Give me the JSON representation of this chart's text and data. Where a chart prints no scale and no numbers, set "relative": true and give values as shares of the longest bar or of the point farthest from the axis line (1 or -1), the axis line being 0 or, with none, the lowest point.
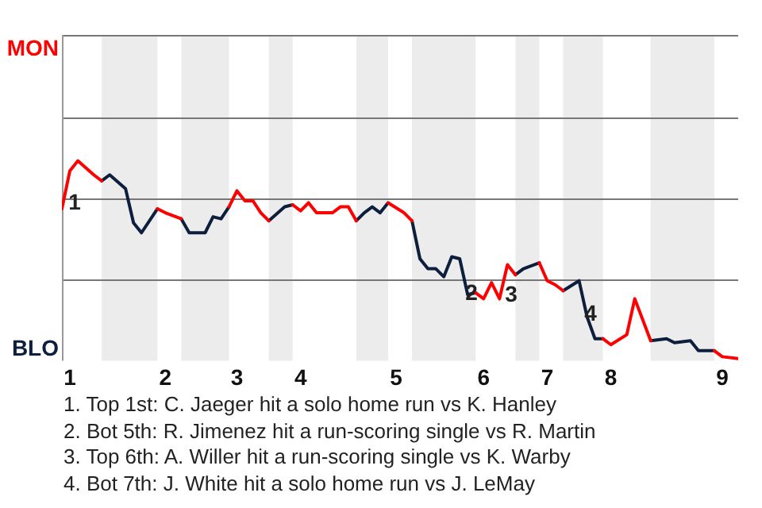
{
  "chart_data": {
    "type": "line",
    "relative": true,
    "categories": [
      null,
      "1",
      null,
      null,
      null,
      null,
      null,
      null,
      null,
      null,
      null,
      null,
      null,
      "2",
      null,
      null,
      null,
      null,
      null,
      null,
      null,
      null,
      "3",
      null,
      null,
      null,
      null,
      null,
      null,
      null,
      "4",
      null,
      null,
      null,
      null,
      null,
      null,
      null,
      null,
      null,
      null,
      null,
      "5",
      null,
      null,
      null,
      null,
      null,
      null,
      null,
      null,
      null,
      null,
      "6",
      null,
      null,
      null,
      null,
      null,
      null,
      null,
      "7",
      null,
      null,
      null,
      null,
      null,
      null,
      null,
      "8",
      null,
      null,
      null,
      null,
      null,
      null,
      null,
      null,
      null,
      null,
      null,
      null,
      null,
      "9",
      null,
      null
    ],
    "series": [
      {
        "name": "MON",
        "color": "#ff0000",
        "values": [
          0.76,
          0.95,
          1,
          null,
          0.93,
          0.9,
          null,
          null,
          null,
          null,
          null,
          null,
          0.76,
          0.74,
          null,
          0.71,
          null,
          null,
          null,
          null,
          null,
          0.77,
          0.85,
          0.8,
          0.8,
          0.74,
          0.7,
          null,
          null,
          0.78,
          0.75,
          0.79,
          0.74,
          null,
          0.74,
          0.77,
          0.77,
          0.7,
          null,
          null,
          null,
          0.79,
          null,
          0.74,
          0.7,
          null,
          null,
          null,
          null,
          null,
          null,
          null,
          0.34,
          0.31,
          0.39,
          0.31,
          0.48,
          0.43,
          null,
          null,
          0.49,
          0.4,
          0.38,
          0.35,
          null,
          null,
          null,
          null,
          0.11,
          0.08,
          null,
          0.13,
          0.31,
          null,
          0.1,
          null,
          null,
          null,
          null,
          null,
          null,
          null,
          0.05,
          0.02,
          null,
          0.01
        ]
      },
      {
        "name": "BLO",
        "color": "#0d1f3c",
        "values": [
          null,
          null,
          null,
          null,
          null,
          0.9,
          0.93,
          null,
          0.86,
          0.69,
          0.64,
          null,
          0.76,
          null,
          null,
          0.71,
          0.64,
          null,
          0.64,
          0.72,
          0.71,
          0.77,
          null,
          null,
          null,
          null,
          0.7,
          null,
          0.77,
          0.78,
          null,
          null,
          null,
          null,
          null,
          null,
          null,
          0.7,
          0.74,
          0.77,
          0.74,
          0.79,
          null,
          null,
          0.7,
          0.51,
          0.46,
          0.46,
          0.42,
          0.52,
          0.51,
          0.33,
          0.34,
          null,
          null,
          null,
          null,
          0.43,
          0.46,
          null,
          0.49,
          null,
          null,
          0.35,
          null,
          0.4,
          0.22,
          0.11,
          0.11,
          null,
          null,
          null,
          null,
          null,
          0.1,
          null,
          0.11,
          0.09,
          null,
          0.1,
          0.05,
          null,
          0.05,
          null,
          null,
          null
        ]
      }
    ],
    "legend": false,
    "marker": "none",
    "line_style": "solid",
    "ref_lines": [
      {
        "axis": "y",
        "value": 0.41,
        "color": "#777777"
      },
      {
        "axis": "y",
        "value": 0.81,
        "color": "#777777"
      },
      {
        "axis": "y",
        "value": 1.22,
        "color": "#777777"
      },
      {
        "axis": "y",
        "value": 1.63,
        "color": "#777777"
      }
    ],
    "annotations": [
      "1",
      "2",
      "3",
      "4",
      "1. Top 1st: C. Jaeger hit a solo home run vs K. Hanley",
      "2. Bot 5th: R. Jimenez hit a run-scoring single vs R. Martin",
      "3. Top 6th: A. Willer hit a run-scoring single vs K. Warby",
      "4. Bot 7th: J. White hit a solo home run vs J. LeMay"
    ]
  }
}
